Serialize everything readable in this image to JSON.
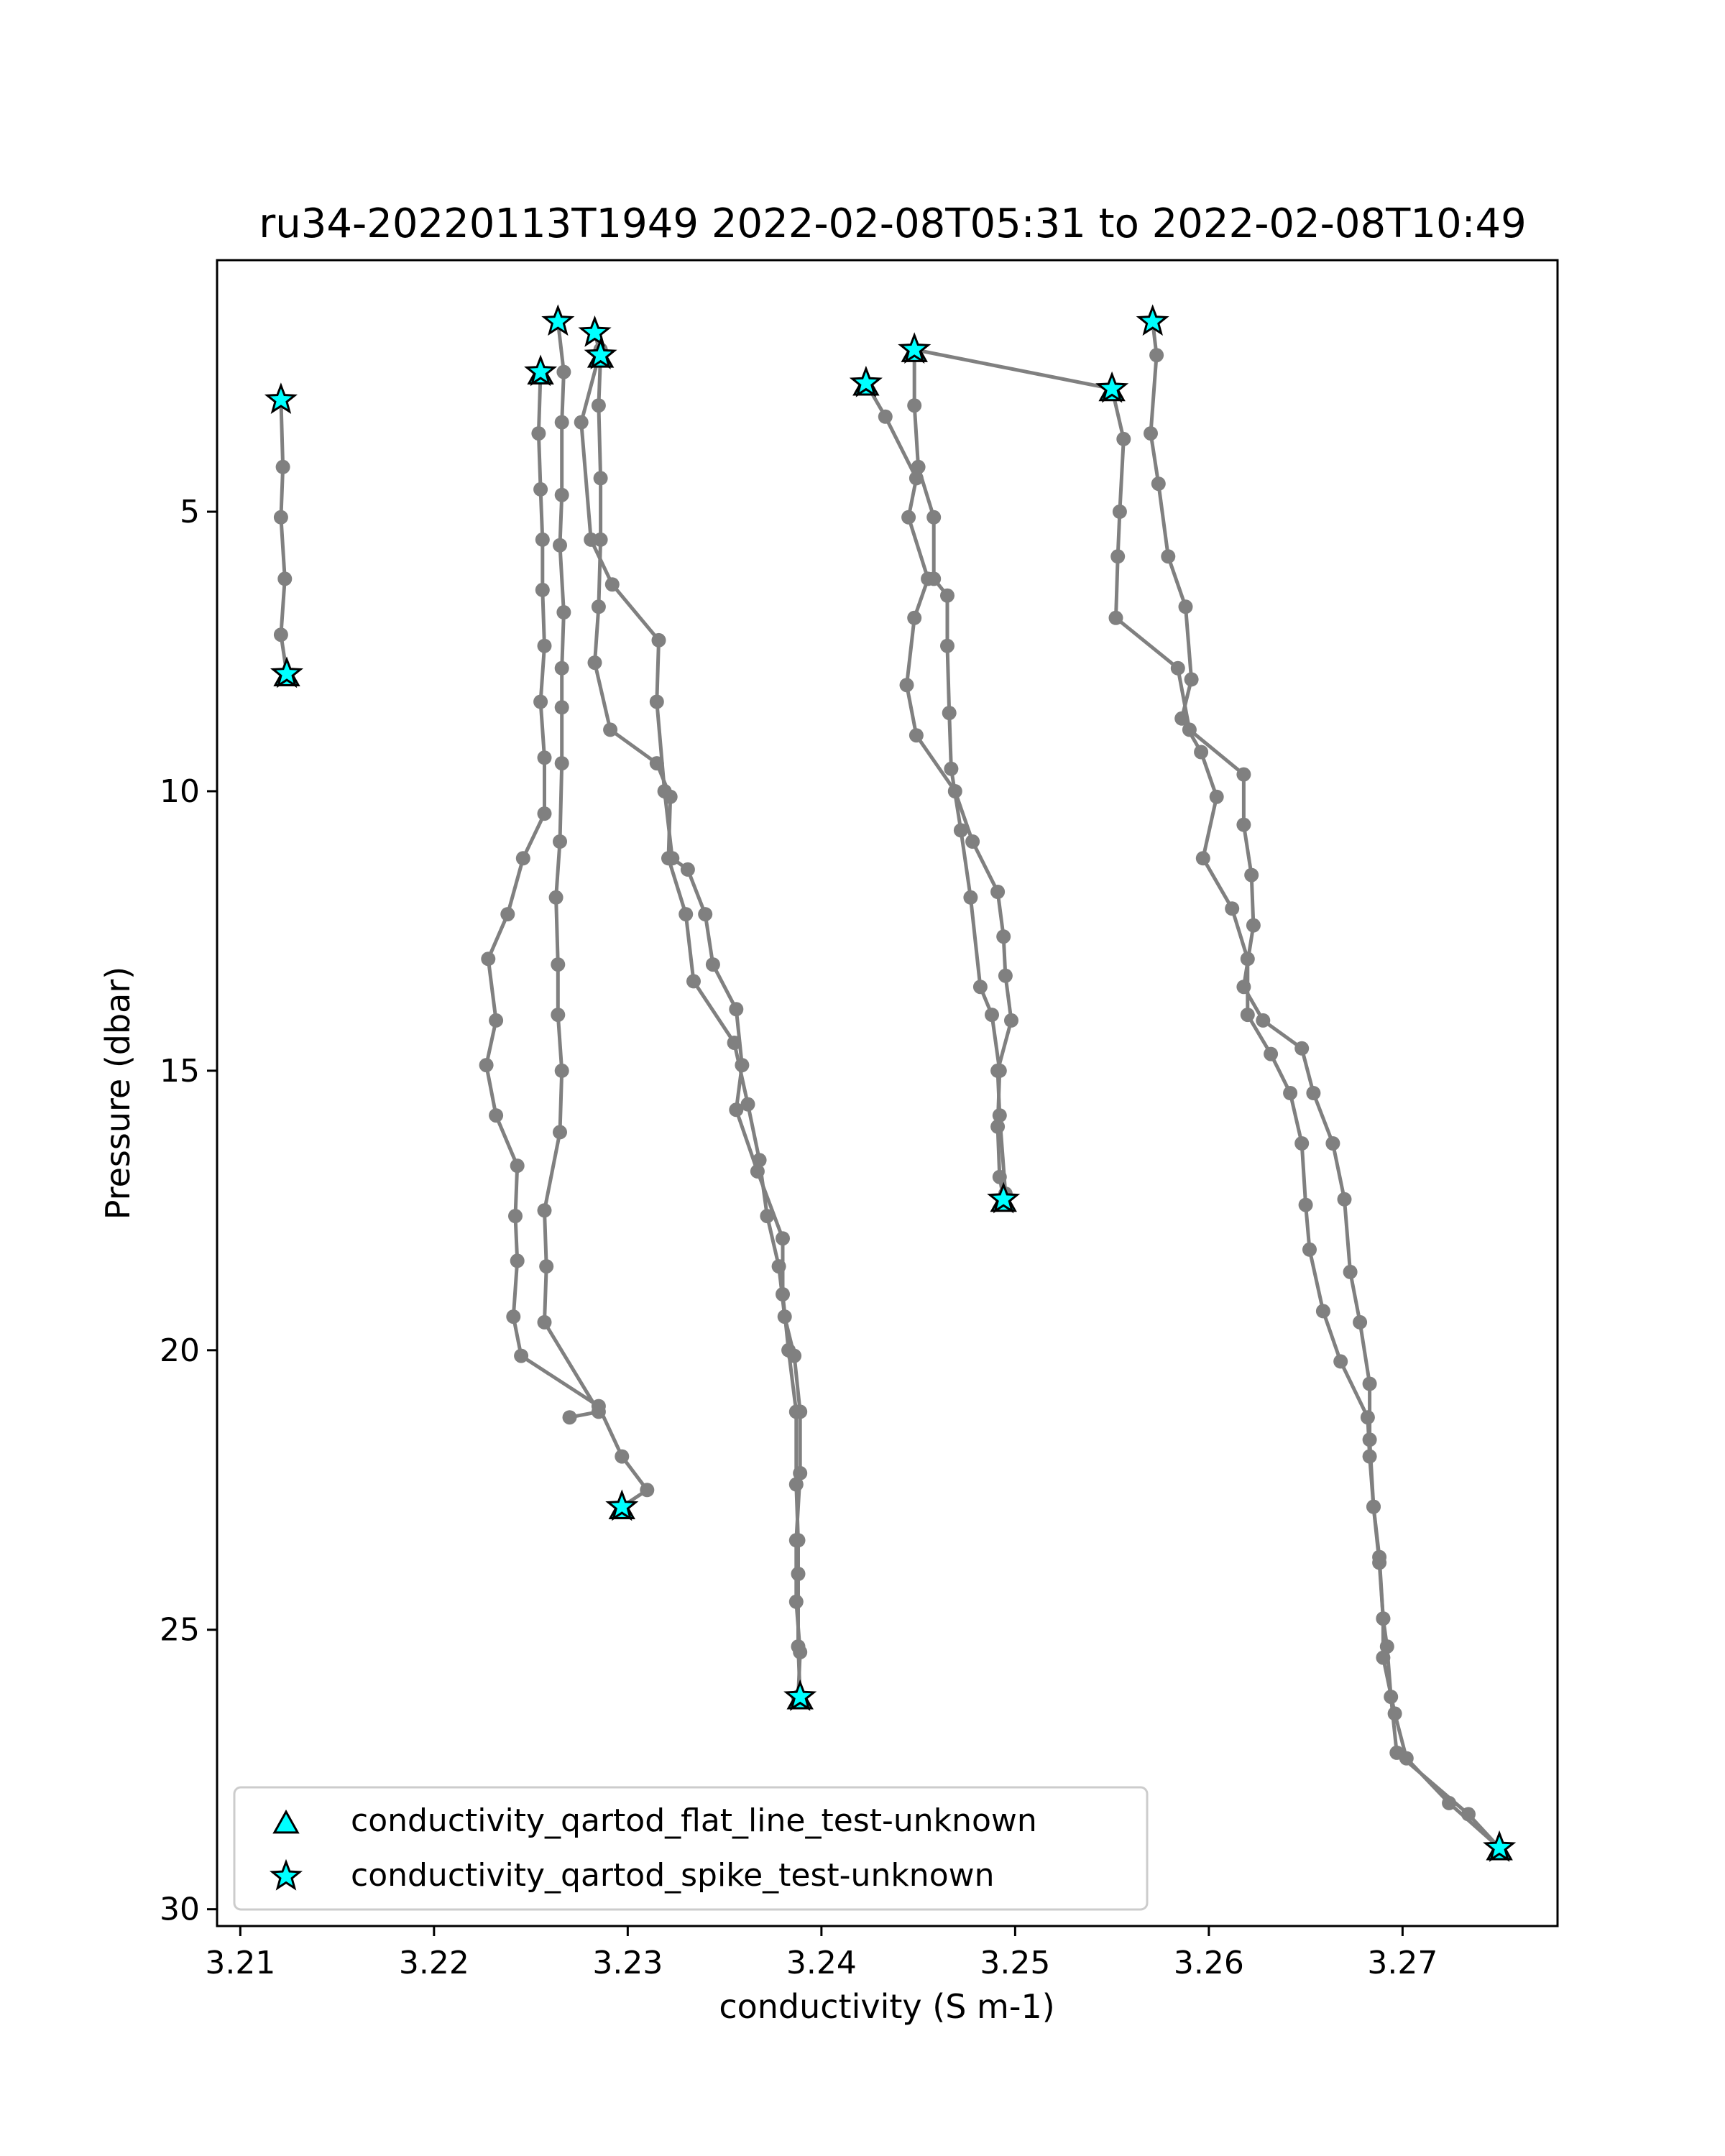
{
  "chart_data": {
    "type": "line",
    "title": "ru34-20220113T1949 2022-02-08T05:31 to 2022-02-08T10:49",
    "xlabel": "conductivity (S m-1)",
    "ylabel": "Pressure (dbar)",
    "xlim": [
      3.2088,
      3.278
    ],
    "ylim": [
      30.3,
      0.5
    ],
    "y_inverted": true,
    "grid": false,
    "x_ticks": [
      "3.21",
      "3.22",
      "3.23",
      "3.24",
      "3.25",
      "3.26",
      "3.27"
    ],
    "x_tick_values": [
      3.21,
      3.22,
      3.23,
      3.24,
      3.25,
      3.26,
      3.27
    ],
    "y_ticks": [
      "5",
      "10",
      "15",
      "20",
      "25",
      "30"
    ],
    "y_tick_values": [
      5,
      10,
      15,
      20,
      25,
      30
    ],
    "line_color": "#808080",
    "marker_color": "#00ffff",
    "legend_position": "lower-left",
    "legend": [
      {
        "label": "conductivity_qartod_flat_line_test-unknown",
        "marker": "triangle"
      },
      {
        "label": "conductivity_qartod_spike_test-unknown",
        "marker": "star"
      }
    ],
    "profiles": [
      {
        "points": [
          [
            3.2121,
            3.0
          ],
          [
            3.2122,
            4.2
          ],
          [
            3.2121,
            5.1
          ],
          [
            3.2123,
            6.2
          ],
          [
            3.2121,
            7.2
          ],
          [
            3.2124,
            7.9
          ]
        ]
      },
      {
        "points": [
          [
            3.2255,
            2.5
          ],
          [
            3.2254,
            3.6
          ],
          [
            3.2255,
            4.6
          ],
          [
            3.2256,
            5.5
          ],
          [
            3.2256,
            6.4
          ],
          [
            3.2257,
            7.4
          ],
          [
            3.2255,
            8.4
          ],
          [
            3.2257,
            9.4
          ],
          [
            3.2257,
            10.4
          ],
          [
            3.2246,
            11.2
          ],
          [
            3.2238,
            12.2
          ],
          [
            3.2228,
            13.0
          ],
          [
            3.2232,
            14.1
          ],
          [
            3.2227,
            14.9
          ],
          [
            3.2232,
            15.8
          ],
          [
            3.2243,
            16.7
          ],
          [
            3.2242,
            17.6
          ],
          [
            3.2243,
            18.4
          ],
          [
            3.2241,
            19.4
          ],
          [
            3.2245,
            20.1
          ],
          [
            3.2285,
            21.0
          ],
          [
            3.2297,
            21.9
          ],
          [
            3.231,
            22.5
          ],
          [
            3.2297,
            22.8
          ]
        ]
      },
      {
        "points": [
          [
            3.2264,
            1.6
          ],
          [
            3.2267,
            2.5
          ],
          [
            3.2266,
            3.4
          ],
          [
            3.2266,
            4.7
          ],
          [
            3.2265,
            5.6
          ],
          [
            3.2267,
            6.8
          ],
          [
            3.2266,
            7.8
          ],
          [
            3.2266,
            8.5
          ],
          [
            3.2266,
            9.5
          ],
          [
            3.2265,
            10.9
          ],
          [
            3.2263,
            11.9
          ],
          [
            3.2264,
            13.1
          ],
          [
            3.2264,
            14.0
          ],
          [
            3.2266,
            15.0
          ],
          [
            3.2265,
            16.1
          ],
          [
            3.2257,
            17.5
          ],
          [
            3.2258,
            18.5
          ],
          [
            3.2257,
            19.5
          ],
          [
            3.2285,
            21.1
          ],
          [
            3.227,
            21.2
          ]
        ]
      },
      {
        "points": [
          [
            3.2283,
            1.8
          ],
          [
            3.2286,
            2.2
          ],
          [
            3.2285,
            3.1
          ],
          [
            3.2286,
            4.4
          ],
          [
            3.2286,
            5.5
          ],
          [
            3.2285,
            6.7
          ],
          [
            3.2283,
            7.7
          ],
          [
            3.2291,
            8.9
          ],
          [
            3.2315,
            9.5
          ],
          [
            3.2322,
            10.1
          ],
          [
            3.2321,
            11.2
          ],
          [
            3.233,
            12.2
          ],
          [
            3.2334,
            13.4
          ],
          [
            3.2355,
            14.5
          ],
          [
            3.2362,
            15.6
          ],
          [
            3.2368,
            16.6
          ],
          [
            3.2372,
            17.6
          ],
          [
            3.2378,
            18.5
          ],
          [
            3.2381,
            19.4
          ],
          [
            3.2386,
            20.1
          ],
          [
            3.2389,
            21.1
          ],
          [
            3.2389,
            22.2
          ],
          [
            3.2387,
            23.4
          ],
          [
            3.2387,
            24.5
          ],
          [
            3.2389,
            25.4
          ],
          [
            3.2388,
            26.2
          ]
        ]
      },
      {
        "points": [
          [
            3.2286,
            2.1
          ],
          [
            3.2276,
            3.4
          ],
          [
            3.2281,
            5.5
          ],
          [
            3.2292,
            6.3
          ],
          [
            3.2316,
            7.3
          ],
          [
            3.2315,
            8.4
          ],
          [
            3.2319,
            10.0
          ],
          [
            3.2323,
            11.2
          ],
          [
            3.2331,
            11.4
          ],
          [
            3.234,
            12.2
          ],
          [
            3.2344,
            13.1
          ],
          [
            3.2356,
            13.9
          ],
          [
            3.2359,
            14.9
          ],
          [
            3.2356,
            15.7
          ],
          [
            3.2367,
            16.8
          ],
          [
            3.238,
            18.0
          ],
          [
            3.238,
            19.0
          ],
          [
            3.2383,
            20.0
          ],
          [
            3.2387,
            21.1
          ],
          [
            3.2387,
            22.4
          ],
          [
            3.2388,
            23.4
          ],
          [
            3.2388,
            24.0
          ],
          [
            3.2388,
            25.3
          ],
          [
            3.2389,
            26.2
          ]
        ]
      },
      {
        "points": [
          [
            3.2423,
            2.7
          ],
          [
            3.2433,
            3.3
          ],
          [
            3.2449,
            4.4
          ],
          [
            3.2445,
            5.1
          ],
          [
            3.2455,
            6.2
          ],
          [
            3.2448,
            6.9
          ],
          [
            3.2444,
            8.1
          ],
          [
            3.2449,
            9.0
          ],
          [
            3.2469,
            10.0
          ],
          [
            3.2478,
            10.9
          ],
          [
            3.2491,
            11.8
          ],
          [
            3.2494,
            12.6
          ],
          [
            3.2495,
            13.3
          ],
          [
            3.2498,
            14.1
          ],
          [
            3.2491,
            15.0
          ],
          [
            3.2492,
            15.8
          ],
          [
            3.2495,
            17.2
          ]
        ]
      },
      {
        "points": [
          [
            3.2448,
            2.1
          ],
          [
            3.2448,
            3.1
          ],
          [
            3.245,
            4.2
          ],
          [
            3.2458,
            5.1
          ],
          [
            3.2458,
            6.2
          ],
          [
            3.2465,
            6.5
          ],
          [
            3.2465,
            7.4
          ],
          [
            3.2466,
            8.6
          ],
          [
            3.2467,
            9.6
          ],
          [
            3.2472,
            10.7
          ],
          [
            3.2477,
            11.9
          ],
          [
            3.2482,
            13.5
          ],
          [
            3.2488,
            14.0
          ],
          [
            3.2492,
            15.0
          ],
          [
            3.2491,
            16.0
          ],
          [
            3.2492,
            16.9
          ],
          [
            3.2494,
            17.3
          ]
        ]
      },
      {
        "points": [
          [
            3.2448,
            2.1
          ],
          [
            3.255,
            2.8
          ],
          [
            3.2556,
            3.7
          ],
          [
            3.2554,
            5.0
          ],
          [
            3.2553,
            5.8
          ],
          [
            3.2552,
            6.9
          ],
          [
            3.2584,
            7.8
          ],
          [
            3.259,
            8.9
          ],
          [
            3.2618,
            9.7
          ],
          [
            3.2618,
            10.6
          ],
          [
            3.2622,
            11.5
          ],
          [
            3.2623,
            12.4
          ],
          [
            3.2618,
            13.5
          ],
          [
            3.2628,
            14.1
          ],
          [
            3.2648,
            14.6
          ],
          [
            3.2654,
            15.4
          ],
          [
            3.2664,
            16.3
          ],
          [
            3.267,
            17.3
          ],
          [
            3.2673,
            18.6
          ],
          [
            3.2678,
            19.5
          ],
          [
            3.2683,
            20.6
          ],
          [
            3.2683,
            21.6
          ],
          [
            3.2685,
            22.8
          ],
          [
            3.2688,
            23.8
          ],
          [
            3.269,
            24.8
          ],
          [
            3.269,
            25.5
          ],
          [
            3.2696,
            26.5
          ],
          [
            3.2702,
            27.3
          ],
          [
            3.2724,
            28.1
          ],
          [
            3.275,
            28.9
          ]
        ]
      },
      {
        "points": [
          [
            3.2571,
            1.6
          ],
          [
            3.2573,
            2.2
          ],
          [
            3.257,
            3.6
          ],
          [
            3.2574,
            4.5
          ],
          [
            3.2579,
            5.8
          ],
          [
            3.2588,
            6.7
          ],
          [
            3.2591,
            8.0
          ],
          [
            3.2586,
            8.7
          ],
          [
            3.2596,
            9.3
          ],
          [
            3.2604,
            10.1
          ],
          [
            3.2597,
            11.2
          ],
          [
            3.2612,
            12.1
          ],
          [
            3.262,
            13.0
          ],
          [
            3.262,
            14.0
          ],
          [
            3.2632,
            14.7
          ],
          [
            3.2642,
            15.4
          ],
          [
            3.2648,
            16.3
          ],
          [
            3.265,
            17.4
          ],
          [
            3.2652,
            18.2
          ],
          [
            3.2659,
            19.3
          ],
          [
            3.2668,
            20.2
          ],
          [
            3.2682,
            21.2
          ],
          [
            3.2683,
            21.9
          ],
          [
            3.2685,
            22.8
          ],
          [
            3.2688,
            23.7
          ],
          [
            3.269,
            24.8
          ],
          [
            3.2692,
            25.3
          ],
          [
            3.2694,
            26.2
          ],
          [
            3.2697,
            27.2
          ],
          [
            3.2734,
            28.3
          ],
          [
            3.275,
            28.9
          ]
        ]
      }
    ],
    "flat_line_markers": [
      [
        3.2124,
        7.9
      ],
      [
        3.2255,
        2.5
      ],
      [
        3.2286,
        2.2
      ],
      [
        3.2297,
        22.8
      ],
      [
        3.2389,
        26.2
      ],
      [
        3.2423,
        2.7
      ],
      [
        3.2448,
        2.1
      ],
      [
        3.2494,
        17.3
      ],
      [
        3.255,
        2.8
      ],
      [
        3.275,
        28.9
      ]
    ],
    "spike_markers": [
      [
        3.2121,
        3.0
      ],
      [
        3.2124,
        7.9
      ],
      [
        3.2255,
        2.5
      ],
      [
        3.2264,
        1.6
      ],
      [
        3.2283,
        1.8
      ],
      [
        3.2286,
        2.2
      ],
      [
        3.2297,
        22.8
      ],
      [
        3.2389,
        26.2
      ],
      [
        3.2423,
        2.7
      ],
      [
        3.2448,
        2.1
      ],
      [
        3.2494,
        17.3
      ],
      [
        3.255,
        2.8
      ],
      [
        3.2571,
        1.6
      ],
      [
        3.275,
        28.9
      ]
    ]
  }
}
